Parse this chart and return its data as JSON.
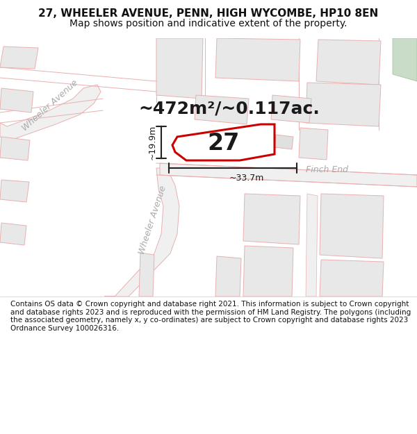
{
  "title_line1": "27, WHEELER AVENUE, PENN, HIGH WYCOMBE, HP10 8EN",
  "title_line2": "Map shows position and indicative extent of the property.",
  "footer": "Contains OS data © Crown copyright and database right 2021. This information is subject to Crown copyright and database rights 2023 and is reproduced with the permission of HM Land Registry. The polygons (including the associated geometry, namely x, y co-ordinates) are subject to Crown copyright and database rights 2023 Ordnance Survey 100026316.",
  "area_label": "~472m²/~0.117ac.",
  "number_label": "27",
  "dim_height": "~19.9m",
  "dim_width": "~33.7m",
  "road_label_upper": "Wheeler Avenue",
  "road_label_lower": "Wheeler Avenue",
  "road_label_finch": "Finch End",
  "bg_color": "#ffffff",
  "map_bg": "#ffffff",
  "road_fill": "#eeeeee",
  "road_line": "#e8b0b0",
  "block_fill": "#e8e8e8",
  "block_edge": "#e8b0b0",
  "property_stroke": "#cc0000",
  "green_fill": "#c8dcc8",
  "green_edge": "#a0c0a0",
  "dim_color": "#222222",
  "road_label_color": "#aaaaaa",
  "title_fontsize": 11,
  "subtitle_fontsize": 10,
  "area_fontsize": 18,
  "number_fontsize": 24,
  "road_fontsize": 9,
  "dim_fontsize": 9,
  "footer_fontsize": 7.5
}
